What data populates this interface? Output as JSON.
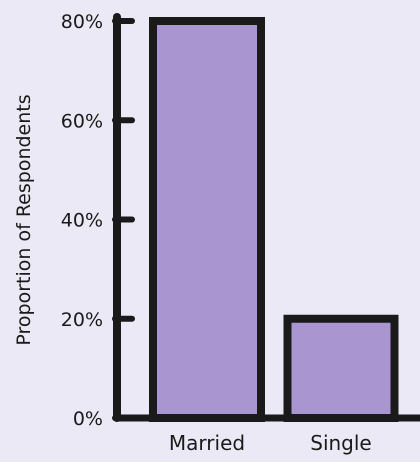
{
  "chart_data": {
    "type": "bar",
    "title": "",
    "xlabel": "",
    "ylabel": "Proportion of Respondents",
    "categories": [
      "Married",
      "Single"
    ],
    "values": [
      80,
      20
    ],
    "value_unit": "%",
    "ylim": [
      0,
      80
    ],
    "yticks": [
      0,
      20,
      40,
      60,
      80
    ],
    "ytick_labels": [
      "0%",
      "20%",
      "40%",
      "60%",
      "80%"
    ],
    "grid": false,
    "legend": "none",
    "colors": {
      "background": "#ebe9f5",
      "bar_fill": "#a996d1",
      "stroke": "#1a1a1a"
    }
  }
}
